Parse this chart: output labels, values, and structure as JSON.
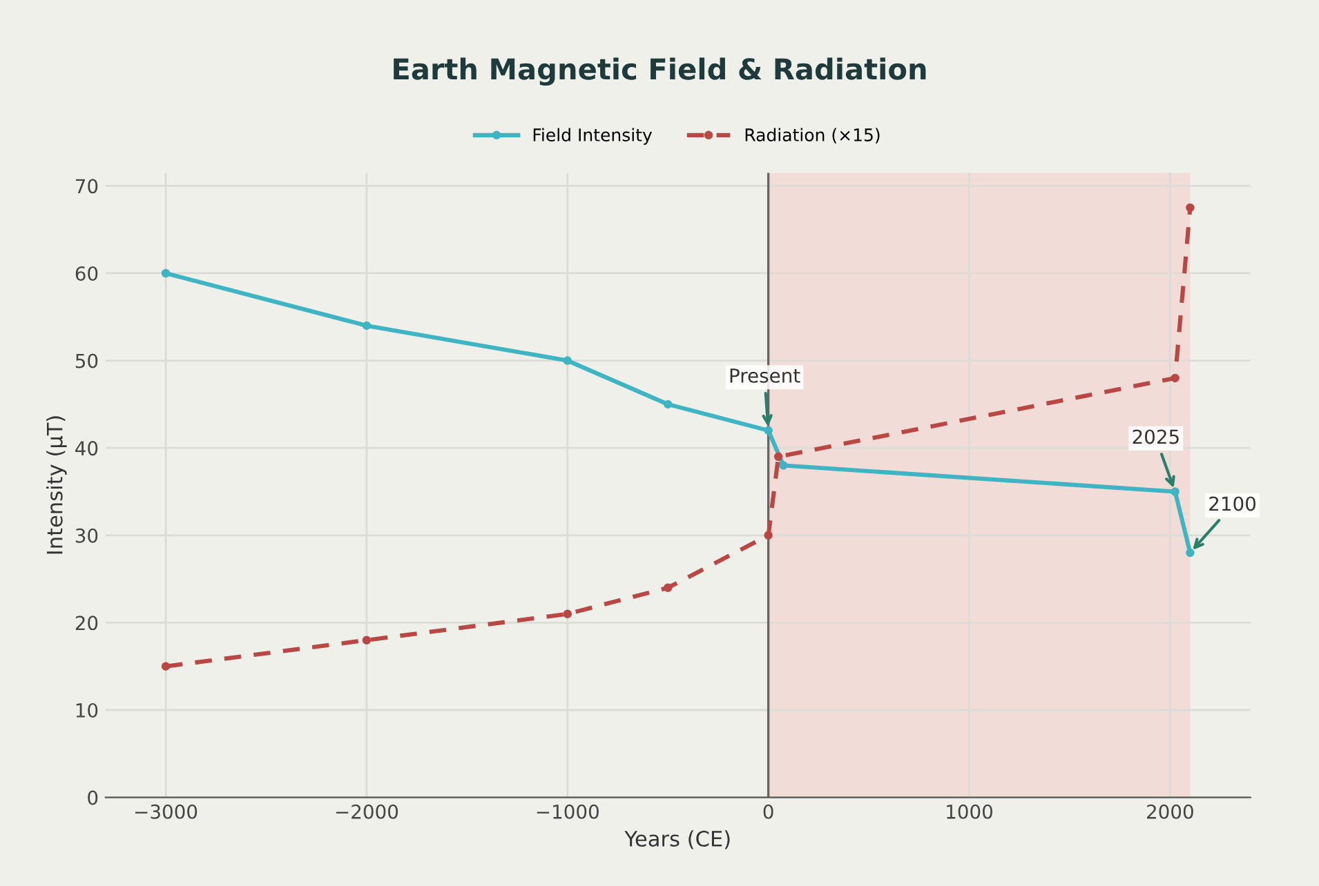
{
  "chart_data": {
    "type": "line",
    "title": "Earth Magnetic Field & Radiation",
    "xlabel": "Years (CE)",
    "ylabel": "Intensity (µT)",
    "series": [
      {
        "name": "Field Intensity",
        "color": "#3fb4c2",
        "x": [
          -3000,
          -2000,
          -1000,
          -500,
          0,
          75,
          2025,
          2100
        ],
        "values": [
          60,
          54,
          50,
          45,
          42,
          38,
          35,
          28
        ],
        "line_style": "solid"
      },
      {
        "name": "Radiation (×15)",
        "color": "#b94845",
        "x": [
          -3000,
          -2000,
          -1000,
          -500,
          0,
          50,
          2025,
          2100
        ],
        "values": [
          15,
          18,
          21,
          24,
          30,
          39,
          48,
          67.5
        ],
        "line_style": "dashed"
      }
    ],
    "annotations": [
      {
        "text": "Present",
        "x": 0,
        "y": 42
      },
      {
        "text": "2025",
        "x": 2025,
        "y": 35
      },
      {
        "text": "2100",
        "x": 2100,
        "y": 28
      }
    ],
    "ref_lines": [
      {
        "axis": "x",
        "value": 0,
        "color": "#666666",
        "line_style": "solid"
      }
    ],
    "bands": [
      {
        "axis": "x",
        "from": 0,
        "to": 2100,
        "color": "#f2dcd8"
      }
    ],
    "xlim": [
      -3300,
      2400
    ],
    "xticks": [
      {
        "value": -3000,
        "label": "−3000"
      },
      {
        "value": -2000,
        "label": "−2000"
      },
      {
        "value": -1000,
        "label": "−1000"
      },
      0,
      1000,
      2000
    ],
    "ylim": [
      0,
      71.5
    ],
    "yticks": [
      0,
      10,
      20,
      30,
      40,
      50,
      60,
      70
    ],
    "grid": true,
    "legend": "top",
    "marker": "circle"
  }
}
